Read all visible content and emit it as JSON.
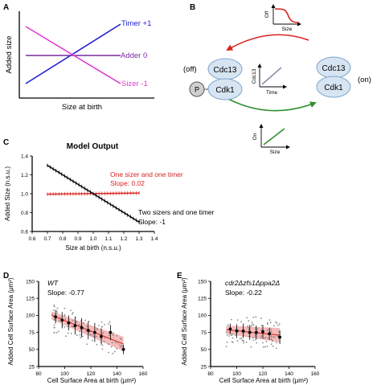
{
  "panel_labels": {
    "a": "A",
    "b": "B",
    "c": "C",
    "d": "D",
    "e": "E"
  },
  "colors": {
    "timer": "#1f1fcf",
    "adder": "#7a2aa0",
    "sizer": "#e23ad0",
    "red_arrow": "#d8231f",
    "green_arrow": "#2f8f2f",
    "cdk_fill": "#d7e4f1",
    "cdk_stroke": "#7fa6cc",
    "band": "#f2a3a3"
  },
  "panel_a": {
    "ylabel": "Added size",
    "xlabel": "Size at birth",
    "lines": [
      {
        "label": "Timer +1",
        "slope": 1
      },
      {
        "label": "Adder 0",
        "slope": 0
      },
      {
        "label": "Sizer -1",
        "slope": -1
      }
    ]
  },
  "panel_b": {
    "state_left": "(off)",
    "state_right": "(on)",
    "cdc13": "Cdc13",
    "cdk1": "Cdk1",
    "phospho": "P",
    "inset_top": {
      "ylabel": "Off",
      "xlabel": "Size"
    },
    "inset_mid": {
      "ylabel": "Cdc13",
      "xlabel": "Time"
    },
    "inset_bottom": {
      "ylabel": "On",
      "xlabel": "Size"
    }
  },
  "chart_data": [
    {
      "id": "C",
      "type": "line",
      "title": "Model Output",
      "xlabel": "Size at birth (n.s.u.)",
      "ylabel": "Added Size (n.s.u.)",
      "xlim": [
        0.6,
        1.4
      ],
      "ylim": [
        0.6,
        1.4
      ],
      "xticks": [
        "0.6",
        "0.7",
        "0.8",
        "0.9",
        "1.0",
        "1.1",
        "1.2",
        "1.3",
        "1.4"
      ],
      "yticks": [
        "1.4",
        "1.2",
        "1.0",
        "0.8",
        "0.6"
      ],
      "series": [
        {
          "name": "One sizer and one timer",
          "slope_label": "Slope: 0.02",
          "x": [
            0.7,
            1.3
          ],
          "y": [
            0.995,
            1.007
          ]
        },
        {
          "name": "Two sizers and one timer",
          "slope_label": "Slope: -1",
          "x": [
            0.7,
            1.3
          ],
          "y": [
            1.3,
            0.7
          ]
        }
      ]
    },
    {
      "id": "D",
      "type": "scatter",
      "title": "WT",
      "slope_label": "Slope: -0.77",
      "xlabel": "Cell Surface Area at birth (μm²)",
      "ylabel": "Added Cell Surface Area (μm²)",
      "xlim": [
        80,
        160
      ],
      "ylim": [
        25,
        150
      ],
      "xticks": [
        "80",
        "100",
        "120",
        "140",
        "160"
      ],
      "yticks": [
        "150",
        "125",
        "100",
        "75",
        "50",
        "25"
      ],
      "fit": {
        "x": [
          90,
          145
        ],
        "y": [
          100,
          58
        ]
      },
      "means": [
        {
          "x": 93,
          "y": 98,
          "err": 10
        },
        {
          "x": 98,
          "y": 93,
          "err": 12
        },
        {
          "x": 103,
          "y": 89,
          "err": 11
        },
        {
          "x": 108,
          "y": 85,
          "err": 13
        },
        {
          "x": 113,
          "y": 82,
          "err": 14
        },
        {
          "x": 118,
          "y": 78,
          "err": 13
        },
        {
          "x": 123,
          "y": 75,
          "err": 14
        },
        {
          "x": 128,
          "y": 69,
          "err": 12
        },
        {
          "x": 135,
          "y": 75,
          "err": 11
        },
        {
          "x": 145,
          "y": 50,
          "err": 7
        }
      ]
    },
    {
      "id": "E",
      "type": "scatter",
      "title": "cdr2Δzfs1Δppa2Δ",
      "slope_label": "Slope: -0.22",
      "xlabel": "Cell Surface Area at birth (μm²)",
      "ylabel": "Added Cell Surface Area (μm²)",
      "xlim": [
        80,
        160
      ],
      "ylim": [
        25,
        150
      ],
      "xticks": [
        "80",
        "100",
        "120",
        "140",
        "160"
      ],
      "yticks": [
        "150",
        "125",
        "100",
        "75",
        "50",
        "25"
      ],
      "fit": {
        "x": [
          92,
          133
        ],
        "y": [
          79,
          71
        ]
      },
      "means": [
        {
          "x": 95,
          "y": 80,
          "err": 8
        },
        {
          "x": 100,
          "y": 77,
          "err": 10
        },
        {
          "x": 105,
          "y": 77,
          "err": 10
        },
        {
          "x": 110,
          "y": 75,
          "err": 11
        },
        {
          "x": 115,
          "y": 75,
          "err": 10
        },
        {
          "x": 120,
          "y": 76,
          "err": 10
        },
        {
          "x": 125,
          "y": 73,
          "err": 9
        },
        {
          "x": 133,
          "y": 68,
          "err": 10
        }
      ]
    }
  ]
}
